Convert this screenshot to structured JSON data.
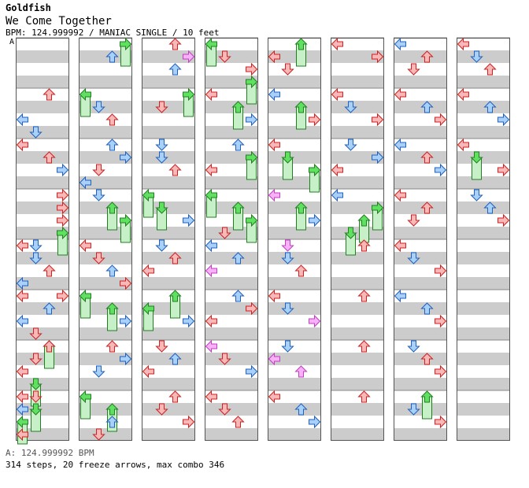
{
  "header": {
    "artist": "Goldfish",
    "title": "We Come Together",
    "meta": "BPM: 124.999992 / MANIAC SINGLE / 10 feet"
  },
  "marker_label": "A",
  "footer": {
    "bpm_line": "A: 124.999992 BPM",
    "stats_line": "314 steps, 20 freeze arrows, max combo 346"
  },
  "colors": {
    "arrow_quarter": "#f8b8b8",
    "arrow_eighth": "#a8d0f8",
    "arrow_sixteenth": "#f8b0f8",
    "arrow_freeze": "#60e060",
    "freeze_body": "#c8f0c8",
    "stripe": "#cccccc"
  },
  "chart": {
    "columns": 8,
    "measures_per_column": 8,
    "lanes": [
      "left",
      "down",
      "up",
      "right"
    ],
    "notes": [
      [
        [
          0,
          1,
          2,
          "q"
        ],
        [
          0,
          1,
          4,
          "q"
        ],
        [
          0,
          1,
          0,
          "e"
        ],
        [
          0,
          1,
          1,
          "e"
        ],
        [
          0,
          2,
          0,
          "q"
        ],
        [
          0,
          2,
          2,
          "q"
        ],
        [
          0,
          2,
          3,
          "e"
        ],
        [
          0,
          3,
          3,
          "q"
        ],
        [
          0,
          3,
          3,
          "q"
        ],
        [
          0,
          3,
          3,
          "q"
        ],
        [
          0,
          3,
          3,
          "f"
        ],
        [
          0,
          4,
          0,
          "q"
        ],
        [
          0,
          4,
          1,
          "e"
        ],
        [
          0,
          4,
          2,
          "q"
        ],
        [
          0,
          4,
          0,
          "e"
        ],
        [
          0,
          4,
          1,
          "e"
        ],
        [
          0,
          5,
          3,
          "q"
        ],
        [
          0,
          5,
          2,
          "e"
        ],
        [
          0,
          5,
          0,
          "e"
        ],
        [
          0,
          5,
          1,
          "q"
        ],
        [
          0,
          5,
          0,
          "q"
        ],
        [
          0,
          6,
          2,
          "f"
        ],
        [
          0,
          6,
          1,
          "q"
        ],
        [
          0,
          6,
          0,
          "q"
        ],
        [
          0,
          6,
          1,
          "f"
        ],
        [
          0,
          6,
          2,
          "q"
        ],
        [
          0,
          7,
          0,
          "q"
        ],
        [
          0,
          7,
          1,
          "f"
        ],
        [
          0,
          7,
          0,
          "f"
        ],
        [
          0,
          7,
          0,
          "q"
        ],
        [
          0,
          7,
          1,
          "q"
        ],
        [
          0,
          7,
          0,
          "e"
        ]
      ],
      [
        [
          1,
          0,
          3,
          "f"
        ],
        [
          1,
          0,
          2,
          "e"
        ],
        [
          1,
          1,
          0,
          "f"
        ],
        [
          1,
          1,
          1,
          "e"
        ],
        [
          1,
          1,
          2,
          "q"
        ],
        [
          1,
          2,
          2,
          "e"
        ],
        [
          1,
          2,
          3,
          "e"
        ],
        [
          1,
          2,
          1,
          "q"
        ],
        [
          1,
          2,
          0,
          "e"
        ],
        [
          1,
          3,
          1,
          "e"
        ],
        [
          1,
          3,
          2,
          "f"
        ],
        [
          1,
          3,
          3,
          "f"
        ],
        [
          1,
          4,
          0,
          "q"
        ],
        [
          1,
          4,
          1,
          "q"
        ],
        [
          1,
          4,
          2,
          "e"
        ],
        [
          1,
          4,
          3,
          "q"
        ],
        [
          1,
          5,
          0,
          "f"
        ],
        [
          1,
          5,
          2,
          "f"
        ],
        [
          1,
          5,
          3,
          "e"
        ],
        [
          1,
          6,
          2,
          "q"
        ],
        [
          1,
          6,
          3,
          "e"
        ],
        [
          1,
          6,
          1,
          "e"
        ],
        [
          1,
          7,
          0,
          "f"
        ],
        [
          1,
          7,
          2,
          "f"
        ],
        [
          1,
          7,
          2,
          "e"
        ],
        [
          1,
          7,
          1,
          "q"
        ]
      ],
      [
        [
          2,
          0,
          2,
          "q"
        ],
        [
          2,
          0,
          3,
          "s"
        ],
        [
          2,
          0,
          2,
          "e"
        ],
        [
          2,
          1,
          3,
          "f"
        ],
        [
          2,
          1,
          1,
          "q"
        ],
        [
          2,
          2,
          1,
          "e"
        ],
        [
          2,
          2,
          1,
          "e"
        ],
        [
          2,
          2,
          2,
          "q"
        ],
        [
          2,
          3,
          0,
          "f"
        ],
        [
          2,
          3,
          1,
          "f"
        ],
        [
          2,
          3,
          3,
          "e"
        ],
        [
          2,
          4,
          1,
          "e"
        ],
        [
          2,
          4,
          2,
          "q"
        ],
        [
          2,
          4,
          0,
          "q"
        ],
        [
          2,
          5,
          2,
          "f"
        ],
        [
          2,
          5,
          0,
          "f"
        ],
        [
          2,
          5,
          3,
          "e"
        ],
        [
          2,
          6,
          1,
          "q"
        ],
        [
          2,
          6,
          2,
          "e"
        ],
        [
          2,
          6,
          0,
          "q"
        ],
        [
          2,
          7,
          2,
          "q"
        ],
        [
          2,
          7,
          1,
          "q"
        ],
        [
          2,
          7,
          3,
          "q"
        ]
      ],
      [
        [
          3,
          0,
          0,
          "f"
        ],
        [
          3,
          0,
          1,
          "q"
        ],
        [
          3,
          0,
          3,
          "q"
        ],
        [
          3,
          0,
          3,
          "f"
        ],
        [
          3,
          1,
          0,
          "q"
        ],
        [
          3,
          1,
          2,
          "f"
        ],
        [
          3,
          1,
          3,
          "e"
        ],
        [
          3,
          2,
          2,
          "e"
        ],
        [
          3,
          2,
          3,
          "f"
        ],
        [
          3,
          2,
          0,
          "q"
        ],
        [
          3,
          3,
          0,
          "f"
        ],
        [
          3,
          3,
          2,
          "f"
        ],
        [
          3,
          3,
          3,
          "f"
        ],
        [
          3,
          3,
          1,
          "q"
        ],
        [
          3,
          4,
          0,
          "e"
        ],
        [
          3,
          4,
          2,
          "e"
        ],
        [
          3,
          4,
          0,
          "s"
        ],
        [
          3,
          5,
          2,
          "e"
        ],
        [
          3,
          5,
          3,
          "q"
        ],
        [
          3,
          5,
          0,
          "q"
        ],
        [
          3,
          6,
          0,
          "s"
        ],
        [
          3,
          6,
          1,
          "q"
        ],
        [
          3,
          6,
          3,
          "e"
        ],
        [
          3,
          7,
          0,
          "q"
        ],
        [
          3,
          7,
          1,
          "q"
        ],
        [
          3,
          7,
          2,
          "q"
        ]
      ],
      [
        [
          4,
          0,
          2,
          "f"
        ],
        [
          4,
          0,
          0,
          "q"
        ],
        [
          4,
          0,
          1,
          "q"
        ],
        [
          4,
          1,
          0,
          "e"
        ],
        [
          4,
          1,
          2,
          "f"
        ],
        [
          4,
          1,
          3,
          "q"
        ],
        [
          4,
          2,
          0,
          "q"
        ],
        [
          4,
          2,
          1,
          "f"
        ],
        [
          4,
          2,
          3,
          "f"
        ],
        [
          4,
          3,
          0,
          "s"
        ],
        [
          4,
          3,
          2,
          "f"
        ],
        [
          4,
          3,
          3,
          "e"
        ],
        [
          4,
          4,
          1,
          "s"
        ],
        [
          4,
          4,
          1,
          "e"
        ],
        [
          4,
          4,
          2,
          "q"
        ],
        [
          4,
          5,
          0,
          "q"
        ],
        [
          4,
          5,
          1,
          "e"
        ],
        [
          4,
          5,
          3,
          "s"
        ],
        [
          4,
          6,
          1,
          "e"
        ],
        [
          4,
          6,
          0,
          "s"
        ],
        [
          4,
          6,
          2,
          "s"
        ],
        [
          4,
          7,
          0,
          "q"
        ],
        [
          4,
          7,
          2,
          "e"
        ],
        [
          4,
          7,
          3,
          "e"
        ]
      ],
      [
        [
          5,
          0,
          0,
          "q"
        ],
        [
          5,
          0,
          3,
          "q"
        ],
        [
          5,
          1,
          0,
          "q"
        ],
        [
          5,
          1,
          1,
          "e"
        ],
        [
          5,
          1,
          3,
          "q"
        ],
        [
          5,
          2,
          1,
          "e"
        ],
        [
          5,
          2,
          3,
          "e"
        ],
        [
          5,
          2,
          0,
          "q"
        ],
        [
          5,
          3,
          0,
          "e"
        ],
        [
          5,
          3,
          3,
          "f"
        ],
        [
          5,
          3,
          2,
          "f"
        ],
        [
          5,
          3,
          1,
          "f"
        ],
        [
          5,
          4,
          2,
          "q"
        ],
        [
          5,
          5,
          2,
          "q"
        ],
        [
          5,
          6,
          2,
          "q"
        ],
        [
          5,
          7,
          2,
          "q"
        ]
      ],
      [
        [
          6,
          0,
          0,
          "e"
        ],
        [
          6,
          0,
          2,
          "q"
        ],
        [
          6,
          0,
          1,
          "q"
        ],
        [
          6,
          1,
          0,
          "q"
        ],
        [
          6,
          1,
          2,
          "e"
        ],
        [
          6,
          1,
          3,
          "q"
        ],
        [
          6,
          2,
          0,
          "e"
        ],
        [
          6,
          2,
          2,
          "q"
        ],
        [
          6,
          2,
          3,
          "e"
        ],
        [
          6,
          3,
          0,
          "q"
        ],
        [
          6,
          3,
          2,
          "q"
        ],
        [
          6,
          3,
          1,
          "q"
        ],
        [
          6,
          4,
          0,
          "q"
        ],
        [
          6,
          4,
          1,
          "e"
        ],
        [
          6,
          4,
          3,
          "q"
        ],
        [
          6,
          5,
          0,
          "e"
        ],
        [
          6,
          5,
          2,
          "e"
        ],
        [
          6,
          5,
          3,
          "q"
        ],
        [
          6,
          6,
          1,
          "e"
        ],
        [
          6,
          6,
          2,
          "q"
        ],
        [
          6,
          6,
          3,
          "q"
        ],
        [
          6,
          7,
          2,
          "f"
        ],
        [
          6,
          7,
          1,
          "e"
        ],
        [
          6,
          7,
          3,
          "q"
        ]
      ],
      [
        [
          7,
          0,
          0,
          "q"
        ],
        [
          7,
          0,
          1,
          "e"
        ],
        [
          7,
          0,
          2,
          "q"
        ],
        [
          7,
          1,
          0,
          "q"
        ],
        [
          7,
          1,
          2,
          "e"
        ],
        [
          7,
          1,
          3,
          "e"
        ],
        [
          7,
          2,
          0,
          "q"
        ],
        [
          7,
          2,
          1,
          "f"
        ],
        [
          7,
          2,
          3,
          "q"
        ],
        [
          7,
          3,
          1,
          "e"
        ],
        [
          7,
          3,
          2,
          "e"
        ],
        [
          7,
          3,
          3,
          "q"
        ]
      ]
    ]
  }
}
